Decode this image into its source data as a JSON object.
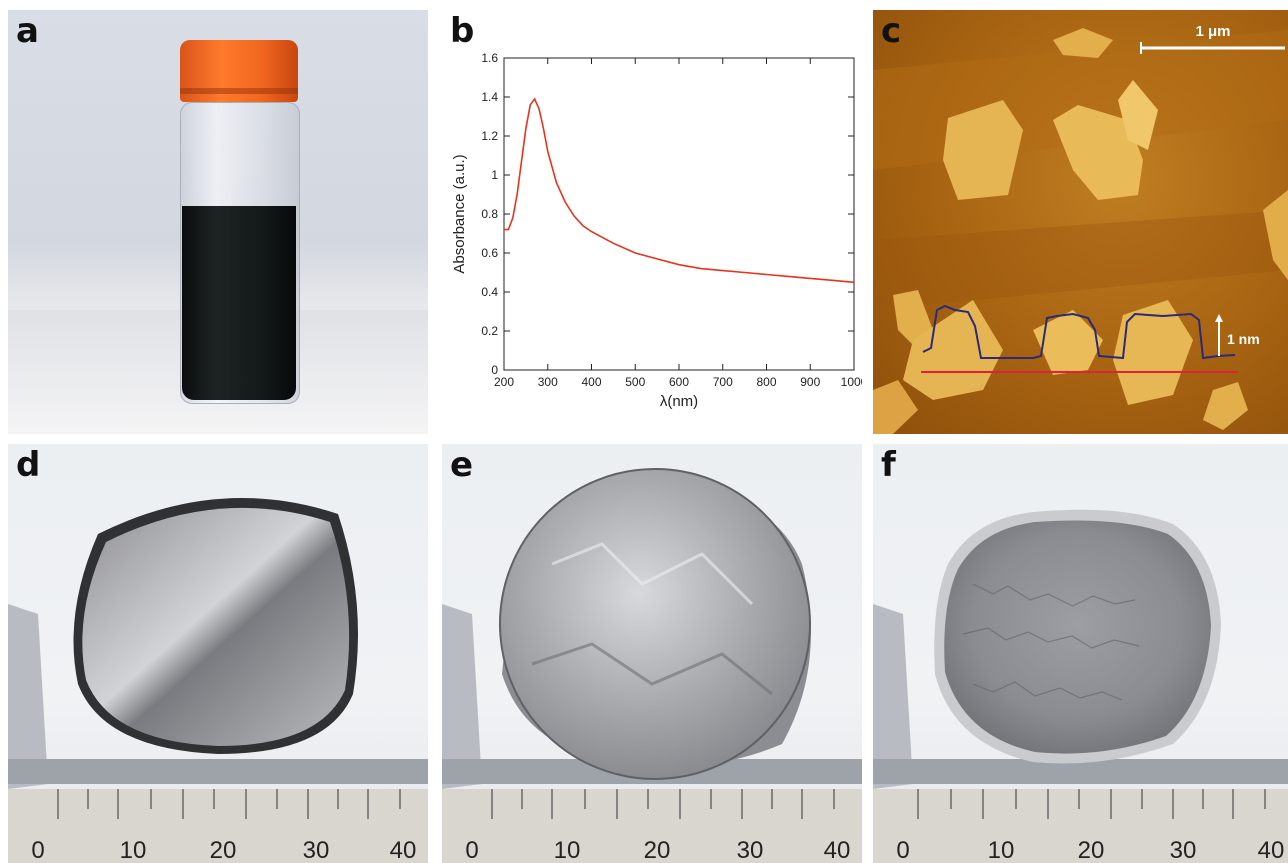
{
  "panels": {
    "a": {
      "letter": "a"
    },
    "b": {
      "letter": "b"
    },
    "c": {
      "letter": "c",
      "scale_bar": "1 μm",
      "height_bar": "1 nm"
    },
    "d": {
      "letter": "d"
    },
    "e": {
      "letter": "e"
    },
    "f": {
      "letter": "f"
    }
  },
  "ruler": {
    "labels": [
      "0",
      "10",
      "20",
      "30",
      "40"
    ]
  },
  "chart_data": {
    "type": "line",
    "title": "",
    "xlabel": "λ(nm)",
    "ylabel": "Absorbance (a.u.)",
    "xlim": [
      200,
      1000
    ],
    "ylim": [
      0,
      1.6
    ],
    "xticks": [
      200,
      300,
      400,
      500,
      600,
      700,
      800,
      900,
      1000
    ],
    "yticks": [
      0,
      0.2,
      0.4,
      0.6,
      0.8,
      1,
      1.2,
      1.4,
      1.6
    ],
    "ytick_labels": [
      "0",
      "0.2",
      "0.4",
      "0.6",
      "0.8",
      "1",
      "1.2",
      "1.4",
      "1.6"
    ],
    "grid": false,
    "series": [
      {
        "color": "#e8331c",
        "x": [
          200,
          210,
          220,
          230,
          240,
          250,
          260,
          270,
          280,
          290,
          300,
          320,
          340,
          360,
          380,
          400,
          450,
          500,
          550,
          600,
          650,
          700,
          750,
          800,
          850,
          900,
          950,
          1000
        ],
        "y": [
          0.72,
          0.72,
          0.78,
          0.9,
          1.07,
          1.24,
          1.36,
          1.39,
          1.34,
          1.24,
          1.12,
          0.96,
          0.86,
          0.79,
          0.74,
          0.71,
          0.65,
          0.6,
          0.57,
          0.54,
          0.52,
          0.51,
          0.5,
          0.49,
          0.48,
          0.47,
          0.46,
          0.45
        ]
      }
    ]
  }
}
